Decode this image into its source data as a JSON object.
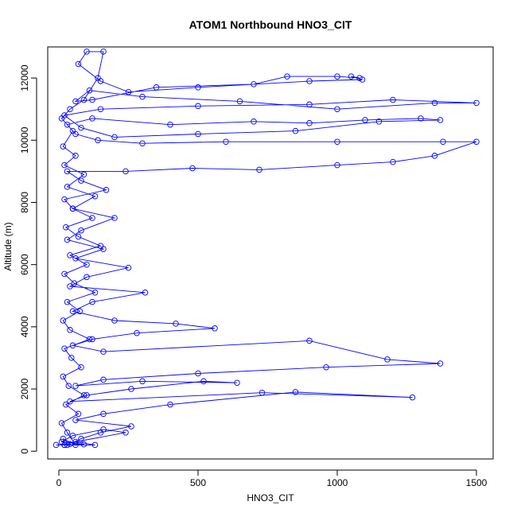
{
  "chart_data": {
    "type": "line",
    "title": "ATOM1 Northbound HNO3_CIT",
    "xlabel": "HNO3_CIT",
    "ylabel": "Altitude (m)",
    "xlim": [
      -40,
      1560
    ],
    "ylim": [
      -250,
      13000
    ],
    "x_ticks": [
      0,
      500,
      1000,
      1500
    ],
    "y_ticks": [
      0,
      2000,
      4000,
      6000,
      8000,
      10000,
      12000
    ],
    "x_tick_labels": [
      "0",
      "500",
      "1000",
      "1500"
    ],
    "y_tick_labels": [
      "0",
      "2000",
      "4000",
      "6000",
      "8000",
      "10000",
      "12000"
    ],
    "grid": false,
    "marker": "open-circle",
    "line_color": "#0000ff",
    "series": [
      {
        "points": [
          [
            20,
            200
          ],
          [
            -10,
            200
          ],
          [
            40,
            230
          ],
          [
            15,
            400
          ],
          [
            60,
            200
          ],
          [
            30,
            600
          ],
          [
            10,
            900
          ],
          [
            70,
            1200
          ],
          [
            25,
            1500
          ],
          [
            90,
            1800
          ],
          [
            35,
            2100
          ],
          [
            15,
            2400
          ],
          [
            80,
            2700
          ],
          [
            45,
            3000
          ],
          [
            20,
            3300
          ],
          [
            110,
            3600
          ],
          [
            40,
            3900
          ],
          [
            15,
            4200
          ],
          [
            75,
            4500
          ],
          [
            30,
            4800
          ],
          [
            130,
            5100
          ],
          [
            55,
            5400
          ],
          [
            20,
            5700
          ],
          [
            100,
            6000
          ],
          [
            40,
            6300
          ],
          [
            150,
            6600
          ],
          [
            70,
            6900
          ],
          [
            25,
            7200
          ],
          [
            120,
            7500
          ],
          [
            50,
            7800
          ],
          [
            20,
            8100
          ],
          [
            170,
            8400
          ],
          [
            80,
            8700
          ],
          [
            30,
            9000
          ],
          [
            240,
            9000
          ],
          [
            480,
            9100
          ],
          [
            720,
            9050
          ],
          [
            1000,
            9200
          ],
          [
            1200,
            9300
          ],
          [
            1350,
            9500
          ],
          [
            1500,
            9950
          ],
          [
            1380,
            9950
          ],
          [
            1000,
            9950
          ],
          [
            600,
            9950
          ],
          [
            300,
            9900
          ],
          [
            140,
            10000
          ],
          [
            60,
            10200
          ],
          [
            30,
            10500
          ],
          [
            120,
            10700
          ],
          [
            400,
            10500
          ],
          [
            700,
            10600
          ],
          [
            900,
            10550
          ],
          [
            1100,
            10650
          ],
          [
            1300,
            10700
          ],
          [
            1370,
            10650
          ],
          [
            1150,
            10600
          ],
          [
            850,
            10300
          ],
          [
            500,
            10200
          ],
          [
            200,
            10100
          ],
          [
            80,
            10400
          ],
          [
            20,
            10800
          ],
          [
            150,
            11000
          ],
          [
            500,
            11100
          ],
          [
            900,
            11150
          ],
          [
            1200,
            11300
          ],
          [
            1500,
            11200
          ],
          [
            1350,
            11200
          ],
          [
            1000,
            11000
          ],
          [
            650,
            11250
          ],
          [
            300,
            11400
          ],
          [
            110,
            11600
          ],
          [
            60,
            11250
          ],
          [
            120,
            11300
          ],
          [
            350,
            11700
          ],
          [
            700,
            11800
          ],
          [
            820,
            12050
          ],
          [
            1000,
            12050
          ],
          [
            1080,
            12000
          ],
          [
            1050,
            12050
          ],
          [
            1090,
            11950
          ],
          [
            900,
            11900
          ],
          [
            500,
            11700
          ],
          [
            250,
            11550
          ],
          [
            150,
            11900
          ],
          [
            70,
            12450
          ],
          [
            100,
            12850
          ],
          [
            160,
            12850
          ],
          [
            140,
            12000
          ],
          [
            90,
            11300
          ],
          [
            40,
            11000
          ],
          [
            10,
            10700
          ],
          [
            50,
            10300
          ],
          [
            15,
            9800
          ],
          [
            60,
            9500
          ],
          [
            20,
            9200
          ],
          [
            90,
            8900
          ],
          [
            30,
            8500
          ],
          [
            130,
            8200
          ],
          [
            50,
            7800
          ],
          [
            200,
            7500
          ],
          [
            80,
            7100
          ],
          [
            30,
            6800
          ],
          [
            160,
            6500
          ],
          [
            60,
            6200
          ],
          [
            250,
            5900
          ],
          [
            100,
            5600
          ],
          [
            40,
            5300
          ],
          [
            310,
            5100
          ],
          [
            120,
            4800
          ],
          [
            50,
            4500
          ],
          [
            200,
            4200
          ],
          [
            420,
            4100
          ],
          [
            560,
            3950
          ],
          [
            280,
            3800
          ],
          [
            120,
            3600
          ],
          [
            50,
            3400
          ],
          [
            160,
            3200
          ],
          [
            900,
            3550
          ],
          [
            1180,
            2950
          ],
          [
            1370,
            2820
          ],
          [
            960,
            2700
          ],
          [
            500,
            2500
          ],
          [
            160,
            2300
          ],
          [
            60,
            2100
          ],
          [
            300,
            2250
          ],
          [
            640,
            2200
          ],
          [
            520,
            2250
          ],
          [
            260,
            2000
          ],
          [
            100,
            1800
          ],
          [
            40,
            1600
          ],
          [
            730,
            1880
          ],
          [
            1270,
            1730
          ],
          [
            850,
            1900
          ],
          [
            400,
            1500
          ],
          [
            160,
            1200
          ],
          [
            60,
            1000
          ],
          [
            260,
            800
          ],
          [
            150,
            600
          ],
          [
            80,
            400
          ],
          [
            30,
            200
          ],
          [
            130,
            200
          ],
          [
            60,
            300
          ],
          [
            240,
            600
          ],
          [
            160,
            700
          ],
          [
            50,
            500
          ],
          [
            10,
            300
          ],
          [
            90,
            220
          ],
          [
            20,
            200
          ]
        ]
      }
    ]
  }
}
